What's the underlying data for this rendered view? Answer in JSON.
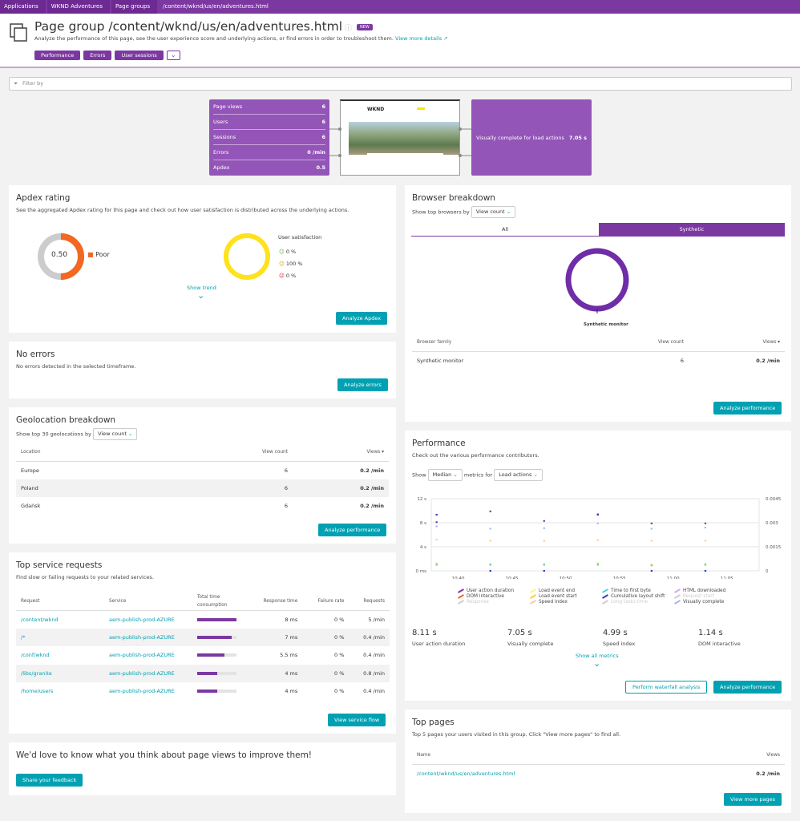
{
  "breadcrumbs": [
    "Applications",
    "WKND Adventures",
    "Page groups",
    "/content/wknd/us/en/adventures.html"
  ],
  "header": {
    "title": "Page group /content/wknd/us/en/adventures.html",
    "badge": "NEW",
    "subtitle": "Analyze the performance of this page, see the user experience score and underlying actions, or find errors in order to troubleshoot them.",
    "details_link": "View more details",
    "buttons": [
      "Performance",
      "Errors",
      "User sessions"
    ]
  },
  "filter": {
    "placeholder": "Filter by"
  },
  "summary": {
    "rows": [
      {
        "label": "Page views",
        "value": "6"
      },
      {
        "label": "Users",
        "value": "6"
      },
      {
        "label": "Sessions",
        "value": "6"
      },
      {
        "label": "Errors",
        "value": "0 /min"
      },
      {
        "label": "Apdex",
        "value": "0.5"
      }
    ],
    "visually_complete_label": "Visually complete for load actions",
    "visually_complete_value": "7.05 s",
    "screenshot_logo": "WKND"
  },
  "apdex": {
    "title": "Apdex rating",
    "description": "See the aggregated Apdex rating for this page and check out how user satisfaction is distributed across the underlying actions.",
    "score": "0.50",
    "score_value": 0.5,
    "rating": "Poor",
    "satisfaction_title": "User satisfaction",
    "satisfied": "0 %",
    "tolerating": "100 %",
    "frustrated": "0 %",
    "show_trend": "Show trend",
    "button": "Analyze Apdex",
    "colors": {
      "poor": "#f26722",
      "rest": "#cccccc",
      "tolerating": "#ffe11c"
    }
  },
  "errors": {
    "title": "No errors",
    "description": "No errors detected in the selected timeframe.",
    "button": "Analyze errors"
  },
  "geo": {
    "title": "Geolocation breakdown",
    "show_label": "Show top 30 geolocations by",
    "select": "View count",
    "columns": [
      "Location",
      "View count",
      "Views"
    ],
    "rows": [
      [
        "Europe",
        "6",
        "0.2 /min"
      ],
      [
        "Poland",
        "6",
        "0.2 /min"
      ],
      [
        "Gdańsk",
        "6",
        "0.2 /min"
      ]
    ],
    "button": "Analyze performance"
  },
  "services": {
    "title": "Top service requests",
    "description": "Find slow or failing requests to your related services.",
    "columns": [
      "Request",
      "Service",
      "Total time consumption",
      "Response time",
      "Failure rate",
      "Requests"
    ],
    "rows": [
      {
        "request": "/content/wknd",
        "service": "aem-publish-prod-AZURE",
        "consumption": 1.0,
        "response": "8 ms",
        "failure": "0 %",
        "requests": "5 /min"
      },
      {
        "request": "/*",
        "service": "aem-publish-prod-AZURE",
        "consumption": 0.88,
        "response": "7 ms",
        "failure": "0 %",
        "requests": "0.4 /min"
      },
      {
        "request": "/conf/wknd",
        "service": "aem-publish-prod-AZURE",
        "consumption": 0.69,
        "response": "5.5 ms",
        "failure": "0 %",
        "requests": "0.4 /min"
      },
      {
        "request": "/libs/granite",
        "service": "aem-publish-prod-AZURE",
        "consumption": 0.5,
        "response": "4 ms",
        "failure": "0 %",
        "requests": "0.8 /min"
      },
      {
        "request": "/home/users",
        "service": "aem-publish-prod-AZURE",
        "consumption": 0.5,
        "response": "4 ms",
        "failure": "0 %",
        "requests": "0.4 /min"
      }
    ],
    "button": "View service flow"
  },
  "feedback": {
    "title": "We'd love to know what you think about page views to improve them!",
    "button": "Share your feedback"
  },
  "browser": {
    "title": "Browser breakdown",
    "show_label": "Show top browsers by",
    "select": "View count",
    "tabs": [
      "All",
      "Synthetic"
    ],
    "active_tab": "Synthetic",
    "donut_label": "Synthetic monitor",
    "columns": [
      "Browser family",
      "View count",
      "Views"
    ],
    "rows": [
      [
        "Synthetic monitor",
        "6",
        "0.2 /min"
      ]
    ],
    "button": "Analyze performance",
    "color": "#6f2da8"
  },
  "performance": {
    "title": "Performance",
    "description": "Check out the various performance contributors.",
    "show": "Show",
    "metric_select": "Median",
    "metrics_for": "metrics for",
    "action_select": "Load actions",
    "show_all": "Show all metrics",
    "waterfall_button": "Perform waterfall analysis",
    "button": "Analyze performance",
    "kpis": [
      {
        "value": "8.11 s",
        "label": "User action duration"
      },
      {
        "value": "7.05 s",
        "label": "Visually complete"
      },
      {
        "value": "4.99 s",
        "label": "Speed index"
      },
      {
        "value": "1.14 s",
        "label": "DOM interactive"
      }
    ]
  },
  "chart_data": {
    "type": "scatter",
    "x_ticks": [
      "10:40",
      "10:45",
      "10:50",
      "10:55",
      "11:00",
      "11:05"
    ],
    "y_ticks": [
      "0 ms",
      "4 s",
      "8 s",
      "12 s"
    ],
    "y2_ticks": [
      "0",
      "0.0015",
      "0.003",
      "0.0045"
    ],
    "ylim": [
      0,
      12
    ],
    "y2lim": [
      0,
      0.0045
    ],
    "grid": true,
    "legend": "bottom",
    "x": [
      "10:38",
      "10:43",
      "10:48",
      "10:53",
      "10:58",
      "11:03"
    ],
    "series": [
      {
        "name": "User action duration",
        "color": "#7c38a1",
        "values": [
          8.1,
          9.9,
          8.3,
          9.4,
          7.9,
          7.9
        ],
        "enabled": true
      },
      {
        "name": "DOM interactive",
        "color": "#f26722",
        "values": [
          null,
          null,
          null,
          null,
          null,
          null
        ],
        "enabled": true
      },
      {
        "name": "Response",
        "color": "#cccccc",
        "values": [],
        "enabled": false
      },
      {
        "name": "Load event end",
        "color": "#fff29a",
        "values": [
          1.3,
          1.2,
          1.2,
          1.3,
          1.1,
          1.2
        ],
        "enabled": true
      },
      {
        "name": "Load event start",
        "color": "#ffd11c",
        "values": [
          1.2,
          1.1,
          1.1,
          1.2,
          1.0,
          1.1
        ],
        "enabled": true
      },
      {
        "name": "Speed index",
        "color": "#ffc9a3",
        "values": [
          5.2,
          5.0,
          5.0,
          5.1,
          5.0,
          5.0
        ],
        "enabled": true
      },
      {
        "name": "Time to first byte",
        "color": "#4fd5e0",
        "values": [
          1.0,
          1.0,
          1.0,
          1.0,
          0.9,
          1.0
        ],
        "enabled": true
      },
      {
        "name": "Cumulative layout shift",
        "color": "#3c3cbd",
        "axis": "right",
        "values": [
          0.0035,
          0,
          0,
          0.0035,
          0,
          0
        ],
        "enabled": true
      },
      {
        "name": "Long tasks time",
        "color": "#cccccc",
        "values": [],
        "enabled": false
      },
      {
        "name": "HTML downloaded",
        "color": "#d6a8f0",
        "values": [],
        "enabled": true
      },
      {
        "name": "Request start",
        "color": "#cccccc",
        "values": [],
        "enabled": false
      },
      {
        "name": "Visually complete",
        "color": "#a3b4ff",
        "values": [
          7.4,
          7.0,
          7.1,
          7.9,
          7.0,
          7.2
        ],
        "enabled": true
      }
    ]
  },
  "top_pages": {
    "title": "Top pages",
    "description": "Top 5 pages your users visited in this group. Click \"View more pages\" to find all.",
    "columns": [
      "Name",
      "Views"
    ],
    "rows": [
      [
        "/content/wknd/us/en/adventures.html",
        "0.2 /min"
      ]
    ],
    "button": "View more pages"
  }
}
